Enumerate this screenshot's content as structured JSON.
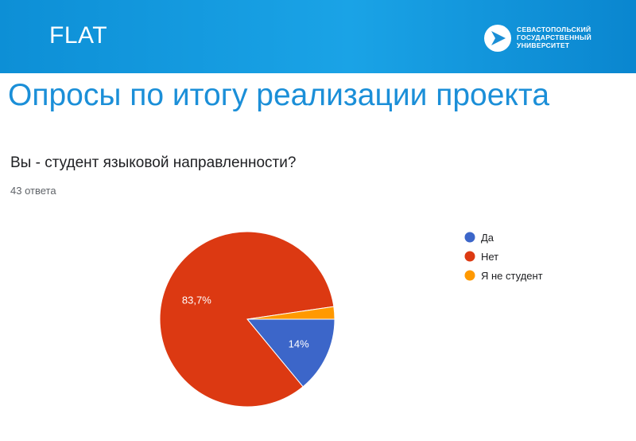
{
  "header": {
    "brand": "FLAT",
    "logo_lines": [
      "СЕВАСТОПОЛЬСКИЙ",
      "ГОСУДАРСТВЕННЫЙ",
      "УНИВЕРСИТЕТ"
    ]
  },
  "slide": {
    "title": "Опросы по итогу реализации проекта",
    "question": "Вы - студент языковой направленности?",
    "responses": "43 ответа"
  },
  "colors": {
    "header": "#1aa3e6",
    "title": "#1b8fd8",
    "da": "#3c66c9",
    "net": "#dc3912",
    "ne_student": "#ff9900"
  },
  "chart_data": {
    "type": "pie",
    "legend_position": "right",
    "slices": [
      {
        "label": "Да",
        "value": 14,
        "display": "14%",
        "color": "#3c66c9"
      },
      {
        "label": "Нет",
        "value": 83.7,
        "display": "83,7%",
        "color": "#dc3912"
      },
      {
        "label": "Я не студент",
        "value": 2.3,
        "display": "",
        "color": "#ff9900"
      }
    ]
  }
}
